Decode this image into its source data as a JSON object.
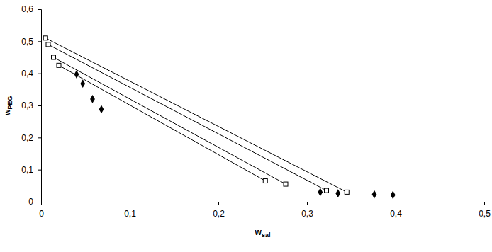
{
  "chart_data": {
    "type": "scatter",
    "x_label": "wsal",
    "y_label": "wPEG",
    "xlim": [
      0,
      0.5
    ],
    "ylim": [
      0,
      0.6
    ],
    "xticks": [
      0,
      {
        "value": 0.1,
        "label": "0,1"
      },
      {
        "value": 0.2,
        "label": "0,2"
      },
      {
        "value": 0.3,
        "label": "0,3"
      },
      {
        "value": 0.4,
        "label": "0,4"
      },
      {
        "value": 0.5,
        "label": "0,5"
      }
    ],
    "yticks": [
      0,
      {
        "value": 0.1,
        "label": "0,1"
      },
      {
        "value": 0.2,
        "label": "0,2"
      },
      {
        "value": 0.3,
        "label": "0,3"
      },
      {
        "value": 0.4,
        "label": "0,4"
      },
      {
        "value": 0.5,
        "label": "0,5"
      },
      {
        "value": 0.6,
        "label": "0,6"
      }
    ],
    "grid": false,
    "series": [
      {
        "type": "line",
        "marker": "square",
        "color": "#000000",
        "x": [
          0.005,
          0.345
        ],
        "values": [
          0.51,
          0.03
        ]
      },
      {
        "type": "line",
        "marker": "square",
        "color": "#000000",
        "x": [
          0.008,
          0.322
        ],
        "values": [
          0.49,
          0.035
        ]
      },
      {
        "type": "line",
        "marker": "square",
        "color": "#000000",
        "x": [
          0.014,
          0.276
        ],
        "values": [
          0.45,
          0.055
        ]
      },
      {
        "type": "line",
        "marker": "square",
        "color": "#000000",
        "x": [
          0.02,
          0.253
        ],
        "values": [
          0.425,
          0.065
        ]
      },
      {
        "type": "scatter",
        "marker": "diamond",
        "color": "#000000",
        "x": [
          0.04,
          0.047,
          0.058,
          0.068,
          0.315,
          0.335,
          0.376,
          0.397
        ],
        "values": [
          0.397,
          0.368,
          0.32,
          0.288,
          0.03,
          0.026,
          0.023,
          0.021
        ]
      }
    ]
  }
}
